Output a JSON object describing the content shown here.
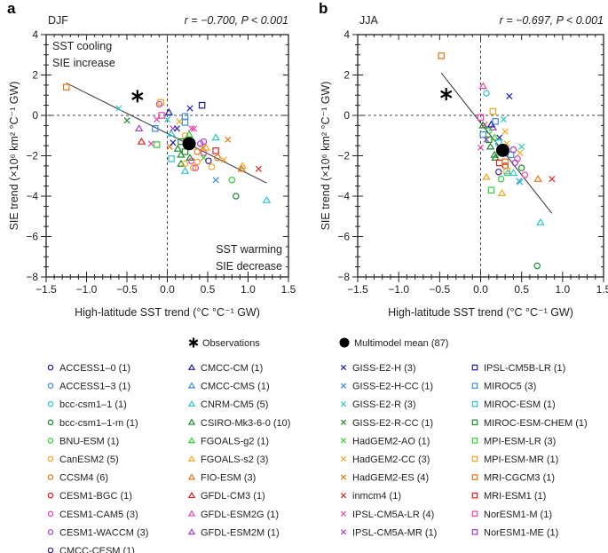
{
  "palette": {
    "dark_blue": "#1c1ca8",
    "blue": "#3a8ee6",
    "cyan": "#2cc6c6",
    "dark_green": "#1e8a2c",
    "green": "#35d035",
    "light_orange": "#f2a623",
    "orange": "#e47514",
    "red": "#e0201e",
    "pink": "#ea44a6",
    "purple": "#a23ed6",
    "dark_purple": "#3e2080"
  },
  "legend": {
    "observations": {
      "label": "Observations",
      "marker": "asterisk",
      "color": "#000000"
    },
    "mean": {
      "label": "Multimodel mean (87)",
      "marker": "filled-circle",
      "color": "#000000"
    },
    "models": [
      {
        "label": "ACCESS1–0 (1)",
        "marker": "circle",
        "color": "dark_blue"
      },
      {
        "label": "ACCESS1–3 (1)",
        "marker": "circle",
        "color": "blue"
      },
      {
        "label": "bcc-csm1–1 (1)",
        "marker": "circle",
        "color": "cyan"
      },
      {
        "label": "bcc-csm1–1-m (1)",
        "marker": "circle",
        "color": "dark_green"
      },
      {
        "label": "BNU-ESM (1)",
        "marker": "circle",
        "color": "green"
      },
      {
        "label": "CanESM2 (5)",
        "marker": "circle",
        "color": "light_orange"
      },
      {
        "label": "CCSM4 (6)",
        "marker": "circle",
        "color": "orange"
      },
      {
        "label": "CESM1-BGC (1)",
        "marker": "circle",
        "color": "red"
      },
      {
        "label": "CESM1-CAM5 (3)",
        "marker": "circle",
        "color": "pink"
      },
      {
        "label": "CESM1-WACCM (3)",
        "marker": "circle",
        "color": "purple"
      },
      {
        "label": "CMCC-CESM (1)",
        "marker": "circle",
        "color": "dark_purple"
      },
      {
        "label": "CMCC-CM (1)",
        "marker": "triangle",
        "color": "dark_blue"
      },
      {
        "label": "CMCC-CMS (1)",
        "marker": "triangle",
        "color": "blue"
      },
      {
        "label": "CNRM-CM5 (5)",
        "marker": "triangle",
        "color": "cyan"
      },
      {
        "label": "CSIRO-Mk3-6-0 (10)",
        "marker": "triangle",
        "color": "dark_green"
      },
      {
        "label": "FGOALS-g2 (1)",
        "marker": "triangle",
        "color": "green"
      },
      {
        "label": "FGOALS-s2 (3)",
        "marker": "triangle",
        "color": "light_orange"
      },
      {
        "label": "FIO-ESM (3)",
        "marker": "triangle",
        "color": "orange"
      },
      {
        "label": "GFDL-CM3 (1)",
        "marker": "triangle",
        "color": "red"
      },
      {
        "label": "GFDL-ESM2G (1)",
        "marker": "triangle",
        "color": "pink"
      },
      {
        "label": "GFDL-ESM2M (1)",
        "marker": "triangle",
        "color": "purple"
      },
      {
        "label": "GISS-E2-H (3)",
        "marker": "cross",
        "color": "dark_blue"
      },
      {
        "label": "GISS-E2-H-CC (1)",
        "marker": "cross",
        "color": "blue"
      },
      {
        "label": "GISS-E2-R (3)",
        "marker": "cross",
        "color": "cyan"
      },
      {
        "label": "GISS-E2-R-CC (1)",
        "marker": "cross",
        "color": "dark_green"
      },
      {
        "label": "HadGEM2-AO (1)",
        "marker": "cross",
        "color": "green"
      },
      {
        "label": "HadGEM2-CC (3)",
        "marker": "cross",
        "color": "light_orange"
      },
      {
        "label": "HadGEM2-ES (4)",
        "marker": "cross",
        "color": "orange"
      },
      {
        "label": "inmcm4 (1)",
        "marker": "cross",
        "color": "red"
      },
      {
        "label": "IPSL-CM5A-LR (4)",
        "marker": "cross",
        "color": "pink"
      },
      {
        "label": "IPSL-CM5A-MR (1)",
        "marker": "cross",
        "color": "purple"
      },
      {
        "label": "IPSL-CM5B-LR (1)",
        "marker": "square",
        "color": "dark_blue"
      },
      {
        "label": "MIROC5 (3)",
        "marker": "square",
        "color": "blue"
      },
      {
        "label": "MIROC-ESM (1)",
        "marker": "square",
        "color": "cyan"
      },
      {
        "label": "MIROC-ESM-CHEM (1)",
        "marker": "square",
        "color": "dark_green"
      },
      {
        "label": "MPI-ESM-LR (3)",
        "marker": "square",
        "color": "green"
      },
      {
        "label": "MPI-ESM-MR (1)",
        "marker": "square",
        "color": "light_orange"
      },
      {
        "label": "MRI-CGCM3 (1)",
        "marker": "square",
        "color": "orange"
      },
      {
        "label": "MRI-ESM1 (1)",
        "marker": "square",
        "color": "red"
      },
      {
        "label": "NorESM1-M (1)",
        "marker": "square",
        "color": "pink"
      },
      {
        "label": "NorESM1-ME (1)",
        "marker": "square",
        "color": "purple"
      }
    ]
  },
  "chart_data": [
    {
      "type": "scatter",
      "panel_letter": "a",
      "season": "DJF",
      "stats": "r = −0.700, P < 0.001",
      "xlabel": "High-latitude SST trend (°C °C⁻¹ GW)",
      "ylabel": "SIE trend (×10⁶ km² °C⁻¹ GW)",
      "xlim": [
        -1.5,
        1.5
      ],
      "ylim": [
        -8,
        4
      ],
      "xticks": [
        "−1.5",
        "−1.0",
        "−0.5",
        "0.0",
        "0.5",
        "1.0",
        "1.5"
      ],
      "yticks": [
        "−8",
        "−6",
        "−4",
        "−2",
        "0",
        "2",
        "4"
      ],
      "annotations": {
        "top_left": [
          "SST cooling",
          "SIE increase"
        ],
        "bottom_right": [
          "SST warming",
          "SIE decrease"
        ]
      },
      "regression_line": [
        [
          -1.25,
          1.6
        ],
        [
          1.23,
          -3.35
        ]
      ],
      "observation": [
        -0.37,
        0.95
      ],
      "multimodel_mean": [
        0.27,
        -1.4
      ],
      "points": [
        [
          37,
          -1.25,
          1.4
        ],
        [
          23,
          -0.6,
          0.35
        ],
        [
          24,
          -0.5,
          -0.25
        ],
        [
          20,
          -0.35,
          -0.65
        ],
        [
          18,
          -0.32,
          -1.3
        ],
        [
          29,
          -0.2,
          -1.4
        ],
        [
          35,
          -0.13,
          -1.45
        ],
        [
          32,
          -0.15,
          -0.65
        ],
        [
          29,
          -0.13,
          -0.2
        ],
        [
          39,
          -0.07,
          0.0
        ],
        [
          36,
          -0.08,
          0.65
        ],
        [
          8,
          -0.1,
          0.55
        ],
        [
          23,
          0.0,
          -0.2
        ],
        [
          11,
          0.02,
          0.15
        ],
        [
          27,
          0.03,
          -1.55
        ],
        [
          33,
          0.05,
          -2.15
        ],
        [
          21,
          0.07,
          -1.35
        ],
        [
          13,
          0.05,
          -0.9
        ],
        [
          30,
          0.07,
          -0.65
        ],
        [
          21,
          0.12,
          -0.65
        ],
        [
          26,
          0.15,
          -0.3
        ],
        [
          14,
          0.13,
          -1.65
        ],
        [
          14,
          0.17,
          -1.95
        ],
        [
          14,
          0.17,
          -2.4
        ],
        [
          34,
          0.17,
          -1.3
        ],
        [
          34,
          0.22,
          -1.8
        ],
        [
          32,
          0.22,
          -0.05
        ],
        [
          32,
          0.22,
          -0.35
        ],
        [
          5,
          0.22,
          -1.0
        ],
        [
          13,
          0.22,
          -2.75
        ],
        [
          5,
          0.22,
          -2.4
        ],
        [
          15,
          0.27,
          -0.95
        ],
        [
          14,
          0.28,
          -2.1
        ],
        [
          8,
          0.3,
          -2.25
        ],
        [
          5,
          0.32,
          -2.6
        ],
        [
          8,
          0.35,
          -2.6
        ],
        [
          5,
          0.37,
          -2.3
        ],
        [
          6,
          0.37,
          -1.8
        ],
        [
          29,
          0.3,
          -0.65
        ],
        [
          29,
          0.33,
          -0.65
        ],
        [
          21,
          0.28,
          0.35
        ],
        [
          31,
          0.43,
          0.5
        ],
        [
          9,
          0.41,
          -1.4
        ],
        [
          27,
          0.44,
          -1.6
        ],
        [
          8,
          0.45,
          -1.85
        ],
        [
          9,
          0.45,
          -1.3
        ],
        [
          16,
          0.48,
          -1.6
        ],
        [
          25,
          0.45,
          -2.1
        ],
        [
          10,
          0.51,
          -2.25
        ],
        [
          5,
          0.55,
          -2.55
        ],
        [
          22,
          0.6,
          -3.2
        ],
        [
          38,
          0.6,
          -1.75
        ],
        [
          13,
          0.6,
          -1.1
        ],
        [
          6,
          0.62,
          -2.1
        ],
        [
          26,
          0.7,
          -2.2
        ],
        [
          27,
          0.75,
          -1.2
        ],
        [
          4,
          0.8,
          -3.2
        ],
        [
          3,
          0.85,
          -4.0
        ],
        [
          16,
          0.93,
          -2.5
        ],
        [
          17,
          0.92,
          -2.65
        ],
        [
          28,
          1.13,
          -2.65
        ],
        [
          13,
          1.23,
          -4.2
        ]
      ]
    },
    {
      "type": "scatter",
      "panel_letter": "b",
      "season": "JJA",
      "stats": "r = −0.697, P < 0.001",
      "xlabel": "High-latitude SST trend (°C °C⁻¹ GW)",
      "ylabel": "SIE trend (×10⁶ km² °C⁻¹ GW)",
      "xlim": [
        -1.5,
        1.5
      ],
      "ylim": [
        -8,
        4
      ],
      "xticks": [
        "−1.5",
        "−1.0",
        "−0.5",
        "0.0",
        "0.5",
        "1.0",
        "1.5"
      ],
      "yticks": [
        "−8",
        "−6",
        "−4",
        "−2",
        "0",
        "2",
        "4"
      ],
      "regression_line": [
        [
          -0.48,
          2.1
        ],
        [
          0.87,
          -4.85
        ]
      ],
      "observation": [
        -0.42,
        1.05
      ],
      "multimodel_mean": [
        0.27,
        -1.73
      ],
      "points": [
        [
          37,
          -0.48,
          2.95
        ],
        [
          19,
          0.03,
          1.45
        ],
        [
          2,
          0.07,
          1.1
        ],
        [
          21,
          0.35,
          0.95
        ],
        [
          36,
          0.15,
          0.2
        ],
        [
          39,
          0.0,
          -0.1
        ],
        [
          32,
          0.18,
          -0.3
        ],
        [
          23,
          0.28,
          -0.2
        ],
        [
          29,
          0.05,
          -0.45
        ],
        [
          14,
          0.03,
          -0.5
        ],
        [
          20,
          0.15,
          -0.6
        ],
        [
          11,
          0.13,
          -0.45
        ],
        [
          4,
          0.1,
          -0.75
        ],
        [
          26,
          0.3,
          -0.8
        ],
        [
          32,
          0.03,
          -0.95
        ],
        [
          30,
          0.07,
          -1.2
        ],
        [
          34,
          0.1,
          -1.2
        ],
        [
          15,
          0.17,
          -1.1
        ],
        [
          21,
          0.23,
          -1.1
        ],
        [
          33,
          0.22,
          -1.35
        ],
        [
          29,
          0.0,
          -1.6
        ],
        [
          14,
          0.12,
          -1.55
        ],
        [
          14,
          0.17,
          -1.95
        ],
        [
          14,
          0.18,
          -2.1
        ],
        [
          26,
          0.32,
          -1.4
        ],
        [
          32,
          0.37,
          -1.95
        ],
        [
          9,
          0.4,
          -1.7
        ],
        [
          23,
          0.5,
          -1.55
        ],
        [
          26,
          0.48,
          -1.85
        ],
        [
          8,
          0.45,
          -2.15
        ],
        [
          9,
          0.42,
          -2.35
        ],
        [
          38,
          0.23,
          -2.35
        ],
        [
          7,
          0.3,
          -2.5
        ],
        [
          37,
          0.3,
          -2.3
        ],
        [
          36,
          0.32,
          -2.75
        ],
        [
          10,
          0.22,
          -2.8
        ],
        [
          13,
          0.33,
          -2.85
        ],
        [
          13,
          0.4,
          -2.85
        ],
        [
          3,
          0.5,
          -2.6
        ],
        [
          8,
          0.54,
          -2.95
        ],
        [
          22,
          0.47,
          -3.25
        ],
        [
          23,
          0.48,
          -3.3
        ],
        [
          16,
          0.07,
          -3.05
        ],
        [
          4,
          0.25,
          -3.15
        ],
        [
          35,
          0.13,
          -3.7
        ],
        [
          16,
          0.26,
          -3.85
        ],
        [
          17,
          0.7,
          -3.15
        ],
        [
          28,
          0.87,
          -3.15
        ],
        [
          13,
          0.73,
          -5.3
        ],
        [
          3,
          0.69,
          -7.45
        ]
      ]
    }
  ]
}
